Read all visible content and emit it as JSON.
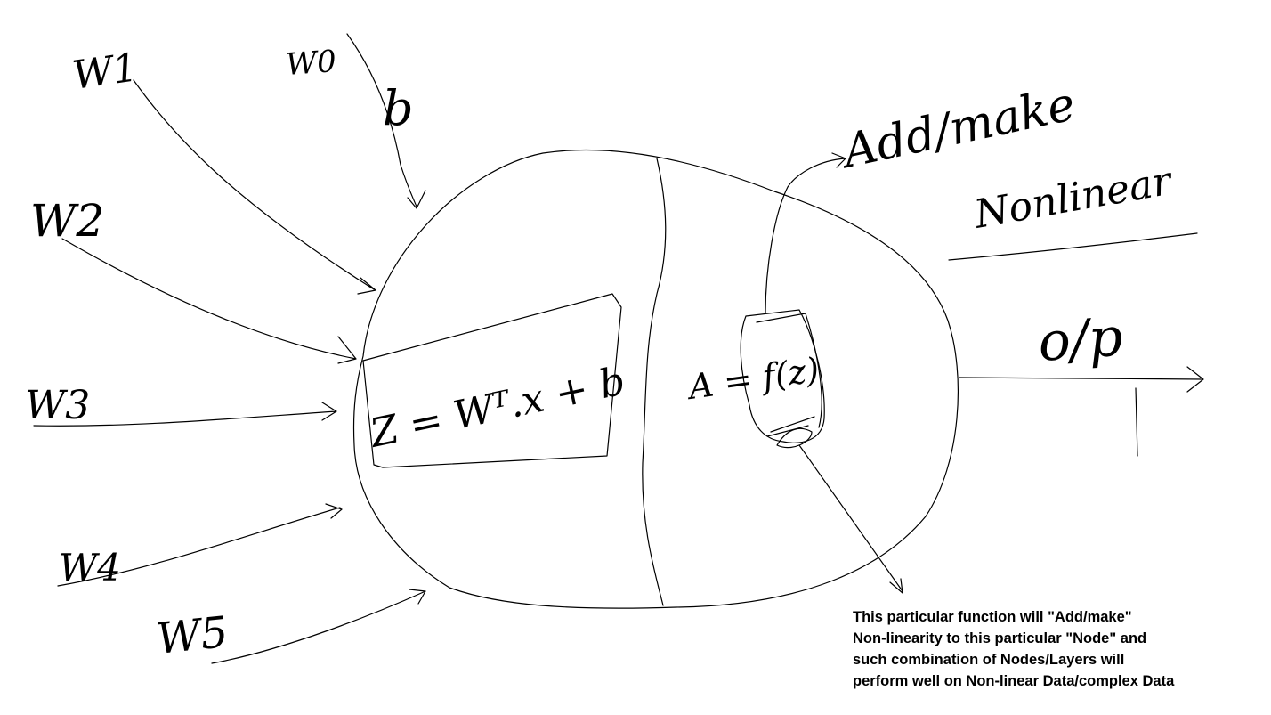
{
  "handwritten": {
    "weight_w1": "W1",
    "weight_w0": "W0",
    "bias": "b",
    "weight_w2": "W2",
    "weight_w3": "W3",
    "weight_w4": "W4",
    "weight_w5": "W5",
    "equation": "Z = Wᵀ.x + b",
    "activation": "A = f(z)",
    "annotation_line1": "Add/make",
    "annotation_line2": "Nonlinear",
    "output": "o/p"
  },
  "note": {
    "lines": [
      "This particular function will \"Add/make\"",
      "Non-linearity to this particular \"Node\" and",
      "such combination of Nodes/Layers will",
      "perform well on Non-linear Data/complex Data"
    ]
  }
}
